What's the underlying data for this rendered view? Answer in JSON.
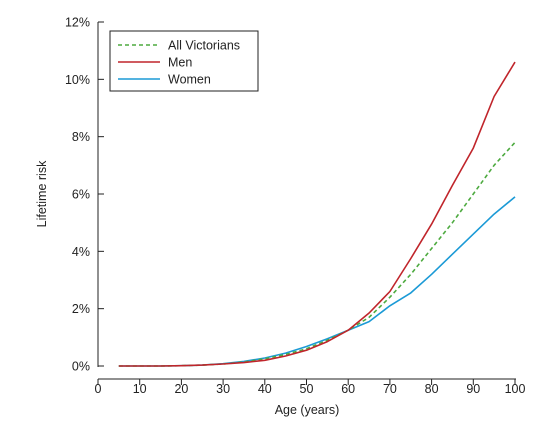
{
  "chart_data": {
    "type": "line",
    "title": "",
    "xlabel": "Age (years)",
    "ylabel": "Lifetime risk",
    "xlim": [
      0,
      100
    ],
    "ylim": [
      0,
      12
    ],
    "x_ticks": [
      0,
      10,
      20,
      30,
      40,
      50,
      60,
      70,
      80,
      90,
      100
    ],
    "x_tick_labels": [
      "0",
      "10",
      "20",
      "30",
      "40",
      "50",
      "60",
      "70",
      "80",
      "90",
      "100"
    ],
    "y_ticks": [
      0,
      2,
      4,
      6,
      8,
      10,
      12
    ],
    "y_tick_labels": [
      "0%",
      "2%",
      "4%",
      "6%",
      "8%",
      "10%",
      "12%"
    ],
    "grid": false,
    "legend_position": "top-left",
    "x": [
      5,
      10,
      15,
      20,
      25,
      30,
      35,
      40,
      45,
      50,
      55,
      60,
      65,
      70,
      75,
      80,
      85,
      90,
      95,
      100
    ],
    "series": [
      {
        "name": "All Victorians",
        "color": "#4daa3f",
        "dash": true,
        "values": [
          0,
          0,
          0,
          0.01,
          0.03,
          0.07,
          0.14,
          0.25,
          0.4,
          0.6,
          0.9,
          1.25,
          1.7,
          2.4,
          3.2,
          4.1,
          5.0,
          6.0,
          7.0,
          7.8
        ]
      },
      {
        "name": "Men",
        "color": "#c0252b",
        "dash": false,
        "values": [
          0,
          0,
          0,
          0.01,
          0.03,
          0.07,
          0.12,
          0.2,
          0.35,
          0.55,
          0.85,
          1.25,
          1.85,
          2.6,
          3.75,
          4.95,
          6.3,
          7.6,
          9.4,
          10.6
        ]
      },
      {
        "name": "Women",
        "color": "#1b9ad6",
        "dash": false,
        "values": [
          0,
          0,
          0,
          0.01,
          0.03,
          0.08,
          0.16,
          0.28,
          0.45,
          0.68,
          0.95,
          1.25,
          1.55,
          2.1,
          2.55,
          3.2,
          3.9,
          4.6,
          5.3,
          5.9
        ]
      }
    ]
  }
}
